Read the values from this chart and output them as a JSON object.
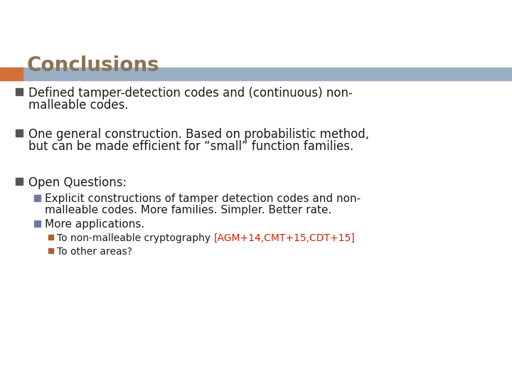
{
  "title": "Conclusions",
  "title_color": "#8B7355",
  "bg_color": "#FFFFFF",
  "header_bar_color": "#9BAFC4",
  "header_bar_orange": "#D2703A",
  "bullet_square_color": "#555555",
  "sub_bullet_color": "#6B7BA4",
  "sub_sub_bullet_color": "#B06030",
  "red_ref_color": "#CC2200",
  "bullet1_line1": "Defined tamper-detection codes and (continuous) non-",
  "bullet1_line2": "malleable codes.",
  "bullet2_line1": "One general construction. Based on probabilistic method,",
  "bullet2_line2": "but can be made efficient for “small” function families.",
  "bullet3": "Open Questions:",
  "sub1_line1": "Explicit constructions of tamper detection codes and non-",
  "sub1_line2": "malleable codes. More families. Simpler. Better rate.",
  "sub2": "More applications.",
  "subsub1_pre": "To non-malleable cryptography ",
  "subsub1_ref": "[AGM+14,CMT+15,CDT+15]",
  "subsub2": "To other areas?",
  "title_fontsize": 20,
  "body_fontsize": 12,
  "sub_fontsize": 11,
  "subsub_fontsize": 10
}
